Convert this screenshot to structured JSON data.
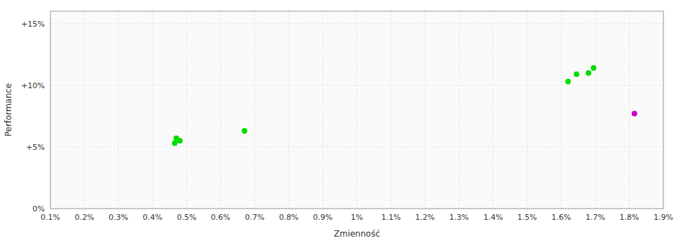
{
  "chart_data": {
    "type": "scatter",
    "xlabel": "Zmienność",
    "ylabel": "Performance",
    "xlim": [
      0.001,
      0.019
    ],
    "ylim": [
      0.0,
      0.16
    ],
    "xticks": [
      {
        "value": 0.001,
        "label": "0.1%"
      },
      {
        "value": 0.002,
        "label": "0.2%"
      },
      {
        "value": 0.003,
        "label": "0.3%"
      },
      {
        "value": 0.004,
        "label": "0.4%"
      },
      {
        "value": 0.005,
        "label": "0.5%"
      },
      {
        "value": 0.006,
        "label": "0.6%"
      },
      {
        "value": 0.007,
        "label": "0.7%"
      },
      {
        "value": 0.008,
        "label": "0.8%"
      },
      {
        "value": 0.009,
        "label": "0.9%"
      },
      {
        "value": 0.01,
        "label": "1%"
      },
      {
        "value": 0.011,
        "label": "1.1%"
      },
      {
        "value": 0.012,
        "label": "1.2%"
      },
      {
        "value": 0.013,
        "label": "1.3%"
      },
      {
        "value": 0.014,
        "label": "1.4%"
      },
      {
        "value": 0.015,
        "label": "1.5%"
      },
      {
        "value": 0.016,
        "label": "1.6%"
      },
      {
        "value": 0.017,
        "label": "1.7%"
      },
      {
        "value": 0.018,
        "label": "1.8%"
      },
      {
        "value": 0.019,
        "label": "1.9%"
      }
    ],
    "yticks": [
      {
        "value": 0.0,
        "label": "0%"
      },
      {
        "value": 0.05,
        "label": "+5%"
      },
      {
        "value": 0.1,
        "label": "+10%"
      },
      {
        "value": 0.15,
        "label": "+15%"
      }
    ],
    "grid": true,
    "series": [
      {
        "color": "#00dd00",
        "x": [
          0.0047,
          0.0048,
          0.00465,
          0.0067,
          0.0162,
          0.01645,
          0.0168,
          0.01695
        ],
        "values": [
          0.057,
          0.055,
          0.053,
          0.063,
          0.103,
          0.109,
          0.11,
          0.114
        ]
      },
      {
        "color": "#cc00cc",
        "x": [
          0.01815
        ],
        "values": [
          0.077
        ]
      }
    ]
  }
}
